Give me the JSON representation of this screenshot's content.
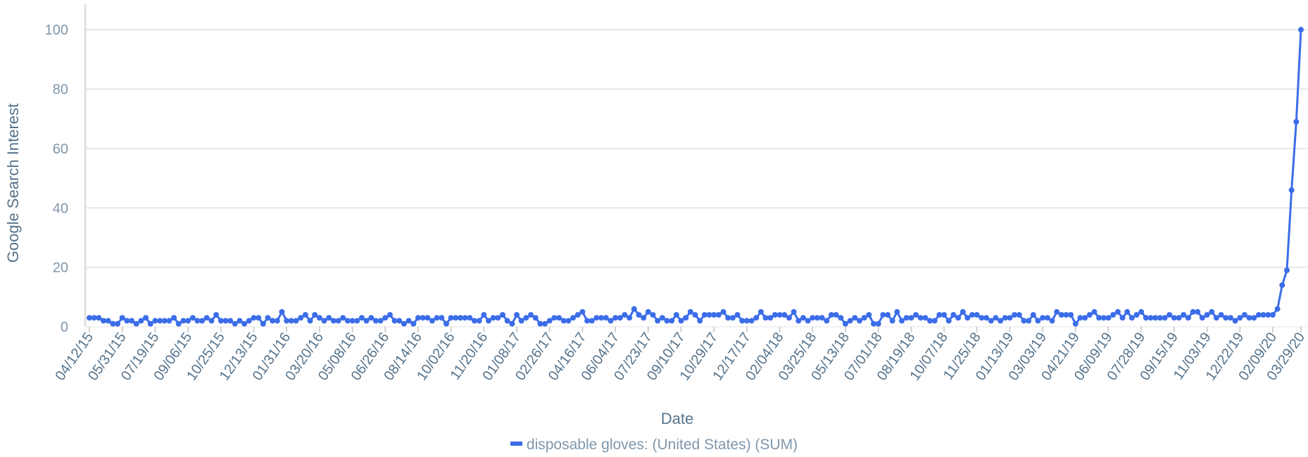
{
  "chart_data": {
    "type": "line",
    "xlabel": "Date",
    "ylabel": "Google Search Interest",
    "ylim": [
      0,
      110
    ],
    "yticks": [
      0,
      20,
      40,
      60,
      80,
      100
    ],
    "grid": true,
    "legend_position": "bottom-center",
    "x_tick_labels": [
      "04/12/15",
      "05/31/15",
      "07/19/15",
      "09/06/15",
      "10/25/15",
      "12/13/15",
      "01/31/16",
      "03/20/16",
      "05/08/16",
      "06/26/16",
      "08/14/16",
      "10/02/16",
      "11/20/16",
      "01/08/17",
      "02/26/17",
      "04/16/17",
      "06/04/17",
      "07/23/17",
      "09/10/17",
      "10/29/17",
      "12/17/17",
      "02/04/18",
      "03/25/18",
      "05/13/18",
      "07/01/18",
      "08/19/18",
      "10/07/18",
      "11/25/18",
      "01/13/19",
      "03/03/19",
      "04/21/19",
      "06/09/19",
      "07/28/19",
      "09/15/19",
      "11/03/19",
      "12/22/19",
      "02/09/20",
      "03/29/20"
    ],
    "series": [
      {
        "name": "disposable gloves: (United States) (SUM)",
        "color": "#3b6de8",
        "x_start": "04/12/15",
        "x_step": "1 week",
        "values": [
          3,
          3,
          3,
          2,
          2,
          1,
          1,
          3,
          2,
          2,
          1,
          2,
          3,
          1,
          2,
          2,
          2,
          2,
          3,
          1,
          2,
          2,
          3,
          2,
          2,
          3,
          2,
          4,
          2,
          2,
          2,
          1,
          2,
          1,
          2,
          3,
          3,
          1,
          3,
          2,
          2,
          5,
          2,
          2,
          2,
          3,
          4,
          2,
          4,
          3,
          2,
          3,
          2,
          2,
          3,
          2,
          2,
          2,
          3,
          2,
          3,
          2,
          2,
          3,
          4,
          2,
          2,
          1,
          2,
          1,
          3,
          3,
          3,
          2,
          3,
          3,
          1,
          3,
          3,
          3,
          3,
          3,
          2,
          2,
          4,
          2,
          3,
          3,
          4,
          2,
          1,
          4,
          2,
          3,
          4,
          3,
          1,
          1,
          2,
          3,
          3,
          2,
          2,
          3,
          4,
          5,
          2,
          2,
          3,
          3,
          3,
          2,
          3,
          3,
          4,
          3,
          6,
          4,
          3,
          5,
          4,
          2,
          3,
          2,
          2,
          4,
          2,
          3,
          5,
          4,
          2,
          4,
          4,
          4,
          4,
          5,
          3,
          3,
          4,
          2,
          2,
          2,
          3,
          5,
          3,
          3,
          4,
          4,
          4,
          3,
          5,
          2,
          3,
          2,
          3,
          3,
          3,
          2,
          4,
          4,
          3,
          1,
          2,
          3,
          2,
          3,
          4,
          1,
          1,
          4,
          4,
          2,
          5,
          2,
          3,
          3,
          4,
          3,
          3,
          2,
          2,
          4,
          4,
          2,
          4,
          3,
          5,
          3,
          4,
          4,
          3,
          3,
          2,
          3,
          2,
          3,
          3,
          4,
          4,
          2,
          2,
          4,
          2,
          3,
          3,
          2,
          5,
          4,
          4,
          4,
          1,
          3,
          3,
          4,
          5,
          3,
          3,
          3,
          4,
          5,
          3,
          5,
          3,
          4,
          5,
          3,
          3,
          3,
          3,
          3,
          4,
          3,
          3,
          4,
          3,
          5,
          5,
          3,
          4,
          5,
          3,
          4,
          3,
          3,
          2,
          3,
          4,
          3,
          3,
          4,
          4,
          4,
          4,
          6,
          14,
          19,
          46,
          69,
          100
        ]
      }
    ]
  }
}
